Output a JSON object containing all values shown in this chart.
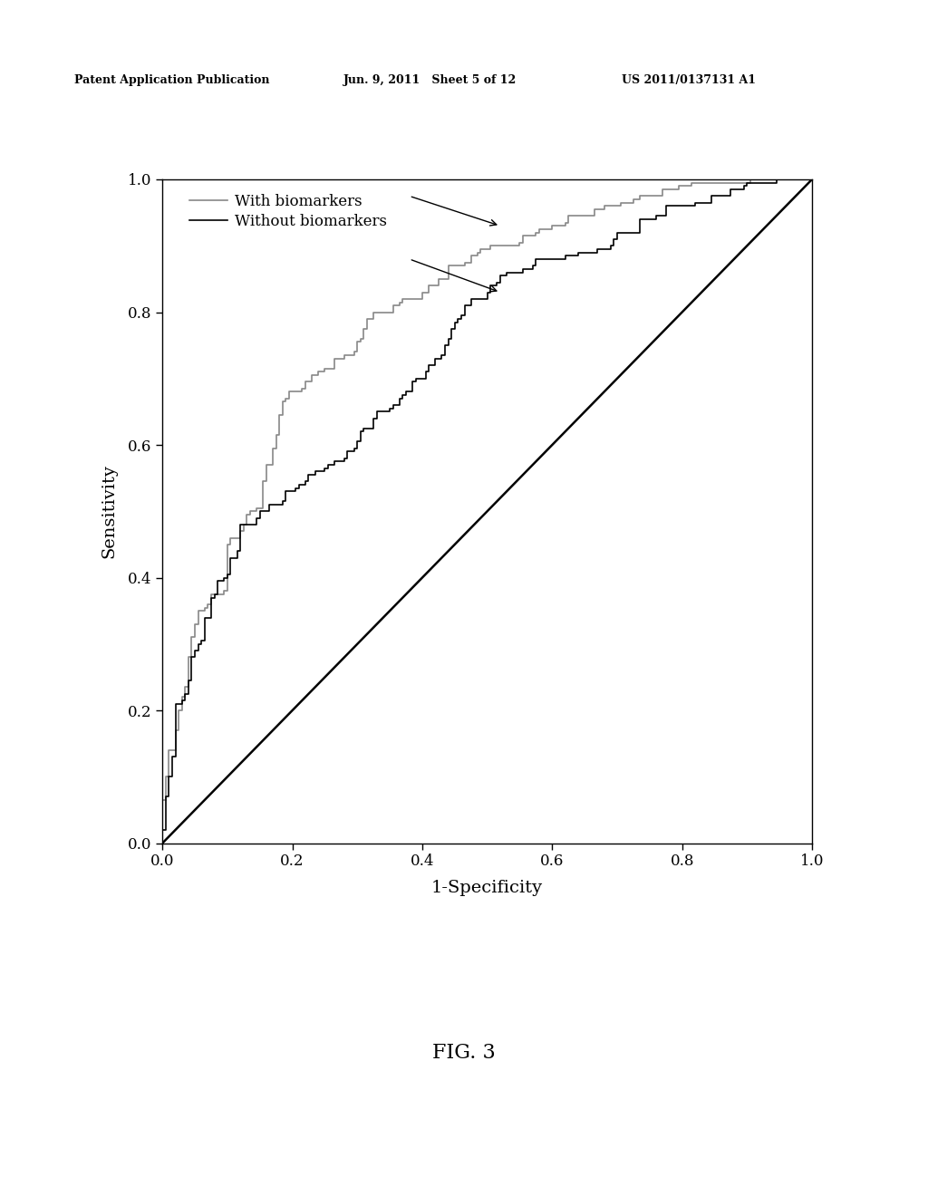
{
  "title": "",
  "xlabel": "1-Specificity",
  "ylabel": "Sensitivity",
  "xlim": [
    0.0,
    1.0
  ],
  "ylim": [
    0.0,
    1.0
  ],
  "xticks": [
    0.0,
    0.2,
    0.4,
    0.6,
    0.8,
    1.0
  ],
  "yticks": [
    0.0,
    0.2,
    0.4,
    0.6,
    0.8,
    1.0
  ],
  "legend_labels": [
    "With biomarkers",
    "Without biomarkers"
  ],
  "color_with": "#888888",
  "color_without": "#000000",
  "color_diagonal": "#000000",
  "header_left": "Patent Application Publication",
  "header_mid": "Jun. 9, 2011   Sheet 5 of 12",
  "header_right": "US 2011/0137131 A1",
  "fig_label": "FIG. 3",
  "background_color": "#ffffff",
  "linewidth_curve": 1.2,
  "linewidth_diagonal": 1.8,
  "tick_fontsize": 12,
  "label_fontsize": 14,
  "legend_fontsize": 12,
  "header_fontsize": 9
}
